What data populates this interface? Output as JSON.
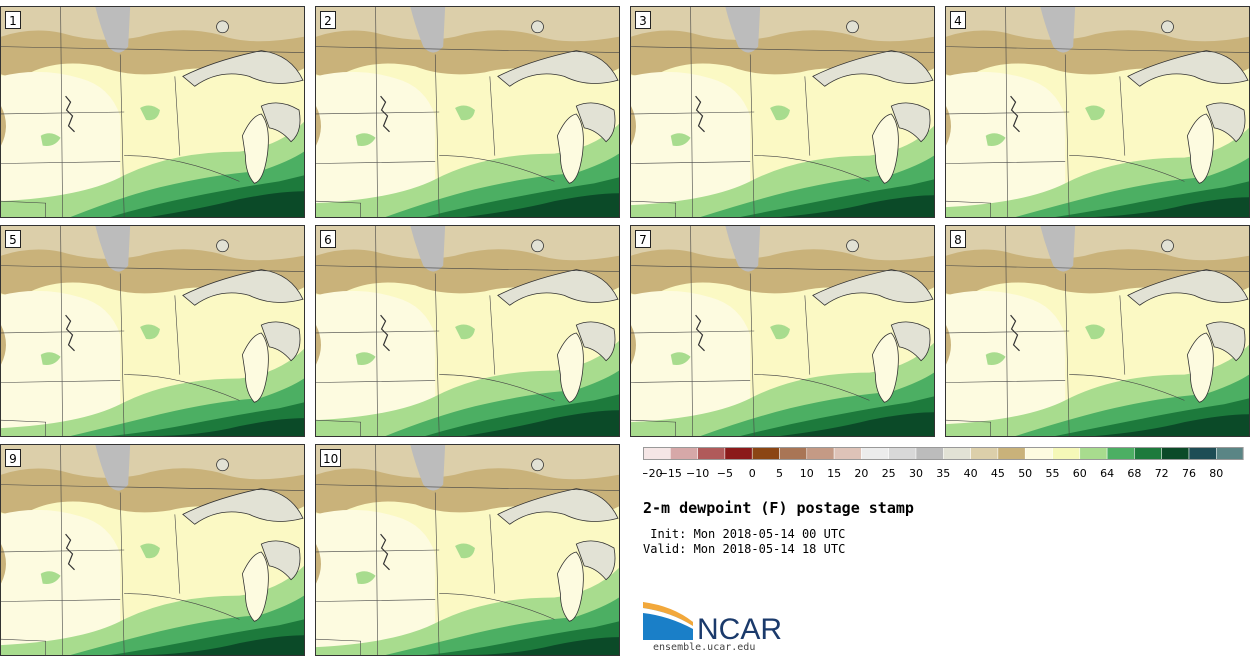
{
  "panels": [
    {
      "label": "1"
    },
    {
      "label": "2"
    },
    {
      "label": "3"
    },
    {
      "label": "4"
    },
    {
      "label": "5"
    },
    {
      "label": "6"
    },
    {
      "label": "7"
    },
    {
      "label": "8"
    },
    {
      "label": "9"
    },
    {
      "label": "10"
    }
  ],
  "colorbar": {
    "bins": [
      {
        "color": "#f5e6e6"
      },
      {
        "color": "#d6a8a8"
      },
      {
        "color": "#b05a5a"
      },
      {
        "color": "#8b1a1a"
      },
      {
        "color": "#8b4513"
      },
      {
        "color": "#a97555"
      },
      {
        "color": "#c49a85"
      },
      {
        "color": "#dec3b8"
      },
      {
        "color": "#ececec"
      },
      {
        "color": "#d8d8d8"
      },
      {
        "color": "#bcbcbc"
      },
      {
        "color": "#e2e2d5"
      },
      {
        "color": "#dccfaa"
      },
      {
        "color": "#c9b27a"
      },
      {
        "color": "#fdfbe0"
      },
      {
        "color": "#f5f8b8"
      },
      {
        "color": "#a8dc8e"
      },
      {
        "color": "#4caf63"
      },
      {
        "color": "#1d7a3c"
      },
      {
        "color": "#0b4a28"
      },
      {
        "color": "#1e4d55"
      },
      {
        "color": "#5a8585"
      }
    ],
    "tick_labels": [
      "-20",
      "-15",
      "-10",
      "-5",
      "0",
      "5",
      "10",
      "15",
      "20",
      "25",
      "30",
      "35",
      "40",
      "45",
      "50",
      "55",
      "60",
      "64",
      "68",
      "72",
      "76",
      "80"
    ]
  },
  "title": "2-m dewpoint (F) postage stamp",
  "init_line": " Init: Mon 2018-05-14 00 UTC",
  "valid_line": "Valid: Mon 2018-05-14 18 UTC",
  "logo": {
    "name": "NCAR",
    "url": "ensemble.ucar.edu"
  }
}
